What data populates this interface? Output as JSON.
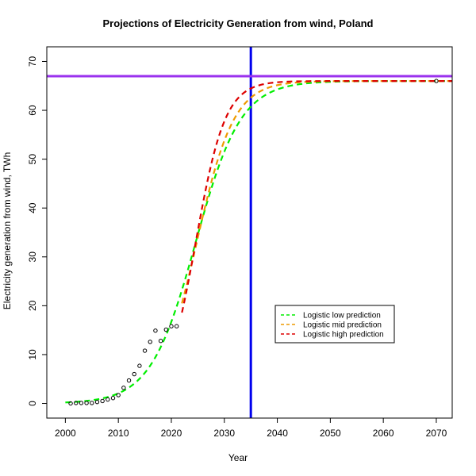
{
  "chart_data": {
    "type": "line",
    "title": "Projections of Electricity Generation from wind, Poland",
    "xlabel": "Year",
    "ylabel": "Electricity generation from wind, TWh",
    "xlim": [
      1996.5,
      2073
    ],
    "ylim": [
      -3,
      73
    ],
    "x_ticks": [
      2000,
      2010,
      2020,
      2030,
      2040,
      2050,
      2060,
      2070
    ],
    "y_ticks": [
      0,
      10,
      20,
      30,
      40,
      50,
      60,
      70
    ],
    "observed": {
      "x": [
        2001,
        2002,
        2003,
        2004,
        2005,
        2006,
        2007,
        2008,
        2009,
        2010,
        2011,
        2012,
        2013,
        2014,
        2015,
        2016,
        2017,
        2018,
        2019,
        2020,
        2021,
        2070
      ],
      "y": [
        0.0,
        0.1,
        0.1,
        0.1,
        0.1,
        0.3,
        0.5,
        0.8,
        1.1,
        1.7,
        3.2,
        4.7,
        6.0,
        7.7,
        10.8,
        12.6,
        14.9,
        12.8,
        15.1,
        15.8,
        15.8,
        66.0
      ]
    },
    "series": [
      {
        "name": "Logistic low prediction",
        "color": "#00ee00",
        "style": "dashed",
        "model": {
          "K": 66,
          "r": 0.235,
          "t0": 2024.6,
          "x_start": 2000,
          "x_end": 2073
        }
      },
      {
        "name": "Logistic mid prediction",
        "color": "#ee9a00",
        "style": "dashed",
        "model": {
          "K": 66,
          "r": 0.285,
          "t0": 2024.8,
          "x_start": 2022,
          "x_end": 2073
        }
      },
      {
        "name": "Logistic high prediction",
        "color": "#dd0000",
        "style": "dashed",
        "model": {
          "K": 66,
          "r": 0.36,
          "t0": 2024.6,
          "x_start": 2022,
          "x_end": 2073
        }
      }
    ],
    "reference_lines": [
      {
        "orientation": "vertical",
        "value": 2035,
        "color": "#0000ee"
      },
      {
        "orientation": "horizontal",
        "value": 67,
        "color": "#9a32ee"
      }
    ],
    "legend_position": "lower-right",
    "grid": false
  }
}
